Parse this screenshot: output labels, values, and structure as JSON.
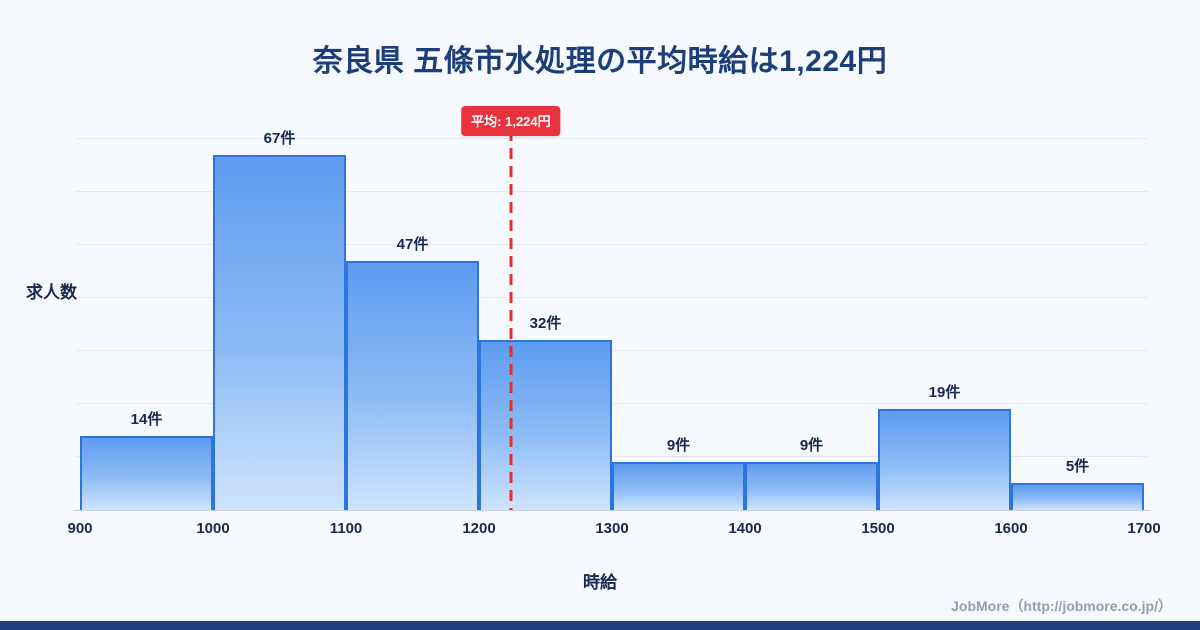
{
  "title": "奈良県 五條市水処理の平均時給は1,224円",
  "footer": "JobMore（http://jobmore.co.jp/）",
  "chart_data": {
    "type": "bar",
    "subtype": "histogram",
    "title": "奈良県 五條市水処理の平均時給は1,224円",
    "xlabel": "時給",
    "ylabel": "求人数",
    "bin_edges": [
      900,
      1000,
      1100,
      1200,
      1300,
      1400,
      1500,
      1600,
      1700
    ],
    "x_tick_labels": [
      "900",
      "1000",
      "1100",
      "1200",
      "1300",
      "1400",
      "1500",
      "1600",
      "1700"
    ],
    "values": [
      14,
      67,
      47,
      32,
      9,
      9,
      19,
      5
    ],
    "value_labels": [
      "14件",
      "67件",
      "47件",
      "32件",
      "9件",
      "9件",
      "19件",
      "5件"
    ],
    "xlim": [
      900,
      1700
    ],
    "ylim": [
      0,
      72
    ],
    "grid": "horizontal-faint",
    "legend": "none",
    "average_value": 1224,
    "average_label": "平均: 1,224円",
    "colors": {
      "background": "#f6f9fd",
      "bar_gradient_top": "#5e9bf0",
      "bar_gradient_bottom": "#cfe4fc",
      "bar_border": "#2f74dd",
      "average_line": "#e03131",
      "average_badge": "#e8323e",
      "title_text": "#1d3e79",
      "axis_text": "#17294e",
      "footer_text": "#949eae",
      "bottom_strip": "#1e3f7d"
    }
  }
}
